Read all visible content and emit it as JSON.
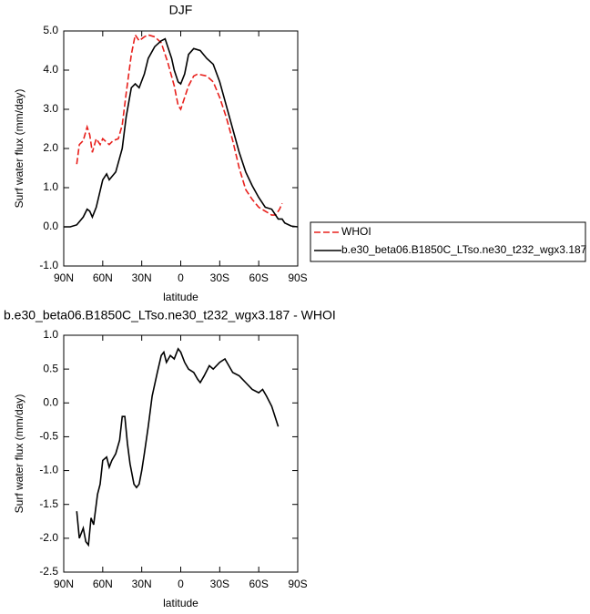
{
  "chart_data": [
    {
      "type": "line",
      "title": "DJF",
      "xlabel": "latitude",
      "ylabel": "Surf water flux (mm/day)",
      "xlim": [
        90,
        -90
      ],
      "xticks": [
        {
          "value": 90,
          "label": "90N"
        },
        {
          "value": 60,
          "label": "60N"
        },
        {
          "value": 30,
          "label": "30N"
        },
        0,
        {
          "value": -30,
          "label": "30S"
        },
        {
          "value": -60,
          "label": "60S"
        },
        {
          "value": -90,
          "label": "90S"
        }
      ],
      "ylim": [
        -1,
        5
      ],
      "yticks": [
        {
          "value": -1,
          "label": "-1.0"
        },
        {
          "value": 0,
          "label": "0.0"
        },
        {
          "value": 1,
          "label": "1.0"
        },
        {
          "value": 2,
          "label": "2.0"
        },
        {
          "value": 3,
          "label": "3.0"
        },
        {
          "value": 4,
          "label": "4.0"
        },
        {
          "value": 5,
          "label": "5.0"
        }
      ],
      "legend": "right",
      "series": [
        {
          "name": "WHOI",
          "color": "#e8201c",
          "dash": true,
          "x": [
            80,
            78,
            75,
            72,
            70,
            68,
            65,
            62,
            60,
            55,
            52,
            48,
            45,
            42,
            38,
            35,
            32,
            28,
            25,
            20,
            15,
            10,
            5,
            2,
            0,
            -3,
            -6,
            -10,
            -13,
            -20,
            -25,
            -30,
            -35,
            -40,
            -45,
            -50,
            -55,
            -60,
            -65,
            -70,
            -73,
            -76,
            -78
          ],
          "values": [
            1.6,
            2.1,
            2.2,
            2.55,
            2.35,
            1.9,
            2.25,
            2.1,
            2.25,
            2.1,
            2.2,
            2.25,
            2.6,
            3.4,
            4.4,
            4.9,
            4.75,
            4.85,
            4.9,
            4.85,
            4.7,
            4.2,
            3.6,
            3.1,
            3.0,
            3.3,
            3.6,
            3.85,
            3.9,
            3.85,
            3.7,
            3.3,
            2.8,
            2.2,
            1.5,
            0.95,
            0.7,
            0.5,
            0.4,
            0.3,
            0.3,
            0.45,
            0.6
          ]
        },
        {
          "name": "b.e30_beta06.B1850C_LTso.ne30_t232_wgx3.187",
          "color": "#000000",
          "dash": false,
          "x": [
            90,
            85,
            80,
            75,
            72,
            70,
            68,
            65,
            60,
            57,
            55,
            50,
            45,
            42,
            38,
            35,
            32,
            28,
            25,
            20,
            15,
            12,
            10,
            7,
            5,
            2,
            0,
            -3,
            -6,
            -10,
            -15,
            -20,
            -25,
            -30,
            -35,
            -40,
            -45,
            -50,
            -55,
            -60,
            -65,
            -70,
            -75,
            -78,
            -80,
            -85,
            -90
          ],
          "values": [
            0.0,
            0.0,
            0.05,
            0.25,
            0.45,
            0.4,
            0.25,
            0.5,
            1.2,
            1.35,
            1.2,
            1.4,
            2.0,
            2.8,
            3.55,
            3.65,
            3.55,
            3.9,
            4.3,
            4.6,
            4.75,
            4.8,
            4.6,
            4.3,
            4.0,
            3.7,
            3.65,
            3.9,
            4.4,
            4.55,
            4.5,
            4.3,
            4.15,
            3.7,
            3.1,
            2.5,
            1.9,
            1.4,
            1.05,
            0.75,
            0.5,
            0.45,
            0.2,
            0.2,
            0.1,
            0.02,
            0.0
          ]
        }
      ]
    },
    {
      "type": "line",
      "title": "b.e30_beta06.B1850C_LTso.ne30_t232_wgx3.187 - WHOI",
      "xlabel": "latitude",
      "ylabel": "Surf water flux (mm/day)",
      "xlim": [
        90,
        -90
      ],
      "xticks": [
        {
          "value": 90,
          "label": "90N"
        },
        {
          "value": 60,
          "label": "60N"
        },
        {
          "value": 30,
          "label": "30N"
        },
        0,
        {
          "value": -30,
          "label": "30S"
        },
        {
          "value": -60,
          "label": "60S"
        },
        {
          "value": -90,
          "label": "90S"
        }
      ],
      "ylim": [
        -2.5,
        1
      ],
      "yticks": [
        -2.5,
        {
          "value": -2,
          "label": "-2.0"
        },
        -1.5,
        {
          "value": -1,
          "label": "-1.0"
        },
        -0.5,
        {
          "value": 0,
          "label": "0.0"
        },
        0.5,
        {
          "value": 1,
          "label": "1.0"
        }
      ],
      "series": [
        {
          "color": "#000000",
          "dash": false,
          "x": [
            80,
            78,
            75,
            73,
            71,
            69,
            67,
            64,
            62,
            60,
            57,
            55,
            53,
            50,
            47,
            45,
            43,
            41,
            39,
            36,
            34,
            32,
            30,
            28,
            25,
            22,
            18,
            15,
            13,
            11,
            8,
            5,
            2,
            0,
            -3,
            -6,
            -10,
            -13,
            -15,
            -18,
            -22,
            -25,
            -30,
            -34,
            -40,
            -45,
            -50,
            -55,
            -60,
            -63,
            -66,
            -70,
            -75
          ],
          "values": [
            -1.6,
            -2.0,
            -1.85,
            -2.05,
            -2.1,
            -1.7,
            -1.8,
            -1.35,
            -1.2,
            -0.85,
            -0.8,
            -0.95,
            -0.85,
            -0.75,
            -0.55,
            -0.2,
            -0.2,
            -0.6,
            -0.9,
            -1.2,
            -1.25,
            -1.2,
            -1.0,
            -0.75,
            -0.35,
            0.1,
            0.45,
            0.7,
            0.75,
            0.6,
            0.7,
            0.65,
            0.8,
            0.75,
            0.6,
            0.5,
            0.45,
            0.35,
            0.3,
            0.4,
            0.55,
            0.5,
            0.6,
            0.65,
            0.45,
            0.4,
            0.3,
            0.2,
            0.15,
            0.2,
            0.1,
            -0.05,
            -0.35
          ]
        }
      ]
    }
  ]
}
